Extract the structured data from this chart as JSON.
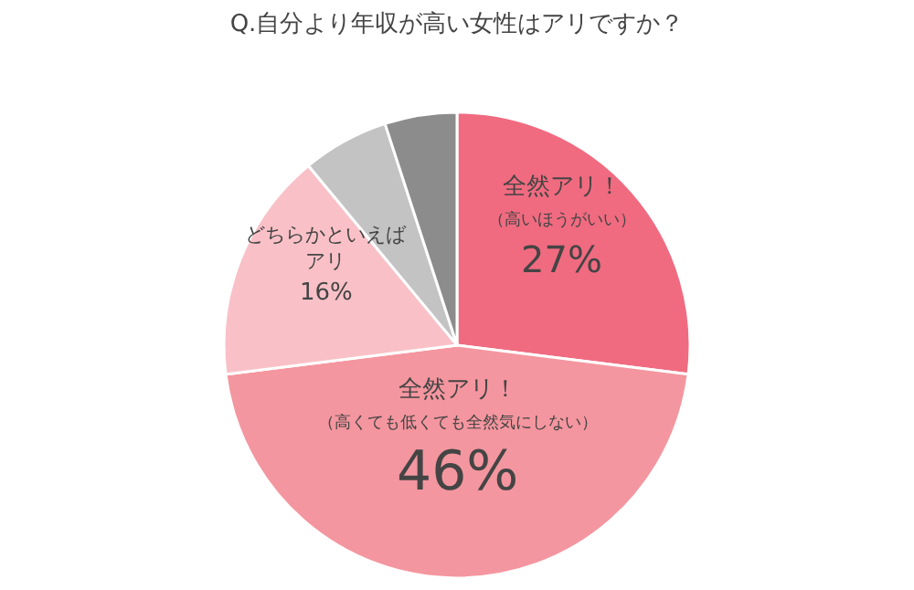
{
  "chart_data": {
    "type": "pie",
    "title": "Q.自分より年収が高い女性はアリですか？",
    "categories": [
      "全然アリ！（高いほうがいい）",
      "全然アリ！（高くても低くても全然気にしない）",
      "どちらかといえばアリ",
      null,
      null
    ],
    "values": [
      27,
      46,
      16,
      6,
      5
    ],
    "value_labels": [
      "27%",
      "46%",
      "16%",
      null,
      null
    ],
    "colors": [
      "#f06b80",
      "#f4969f",
      "#f9c1c7",
      "#c3c3c3",
      "#8c8c8c"
    ],
    "legend": false
  }
}
